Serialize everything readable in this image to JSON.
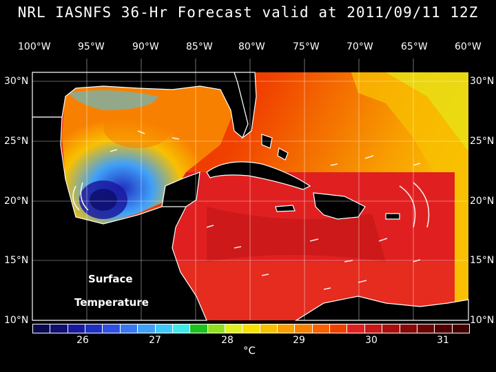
{
  "title": "NRL IASNFS  36-Hr Forecast valid at 2011/09/11 12Z",
  "lon_labels": [
    "100°W",
    "95°W",
    "90°W",
    "85°W",
    "80°W",
    "75°W",
    "70°W",
    "65°W",
    "60°W"
  ],
  "lat_labels": [
    "30°N",
    "25°N",
    "20°N",
    "15°N",
    "10°N"
  ],
  "overlay": {
    "line1": "Surface",
    "line2": "Temperature"
  },
  "colorbar": {
    "ticks": [
      "26",
      "27",
      "28",
      "29",
      "30",
      "31"
    ],
    "unit": "°C",
    "colors": [
      "#0a0a50",
      "#101070",
      "#1a1aa0",
      "#2030c0",
      "#3050e0",
      "#3a78f0",
      "#40a0f8",
      "#40c8f8",
      "#40e8e8",
      "#20c020",
      "#90e020",
      "#e0f020",
      "#f8e000",
      "#f8c000",
      "#f8a000",
      "#f88000",
      "#f86000",
      "#f04000",
      "#e02020",
      "#c81818",
      "#a81010",
      "#880808",
      "#680404",
      "#500000",
      "#400000"
    ]
  },
  "map": {
    "lon_range": [
      -100,
      -60
    ],
    "lat_range": [
      10,
      31
    ],
    "regions": [
      "Gulf of Mexico",
      "Caribbean Sea",
      "Atlantic Ocean",
      "Cuba",
      "Hispaniola",
      "Puerto Rico",
      "Jamaica",
      "Yucatan",
      "Florida",
      "Central America",
      "South America"
    ]
  }
}
